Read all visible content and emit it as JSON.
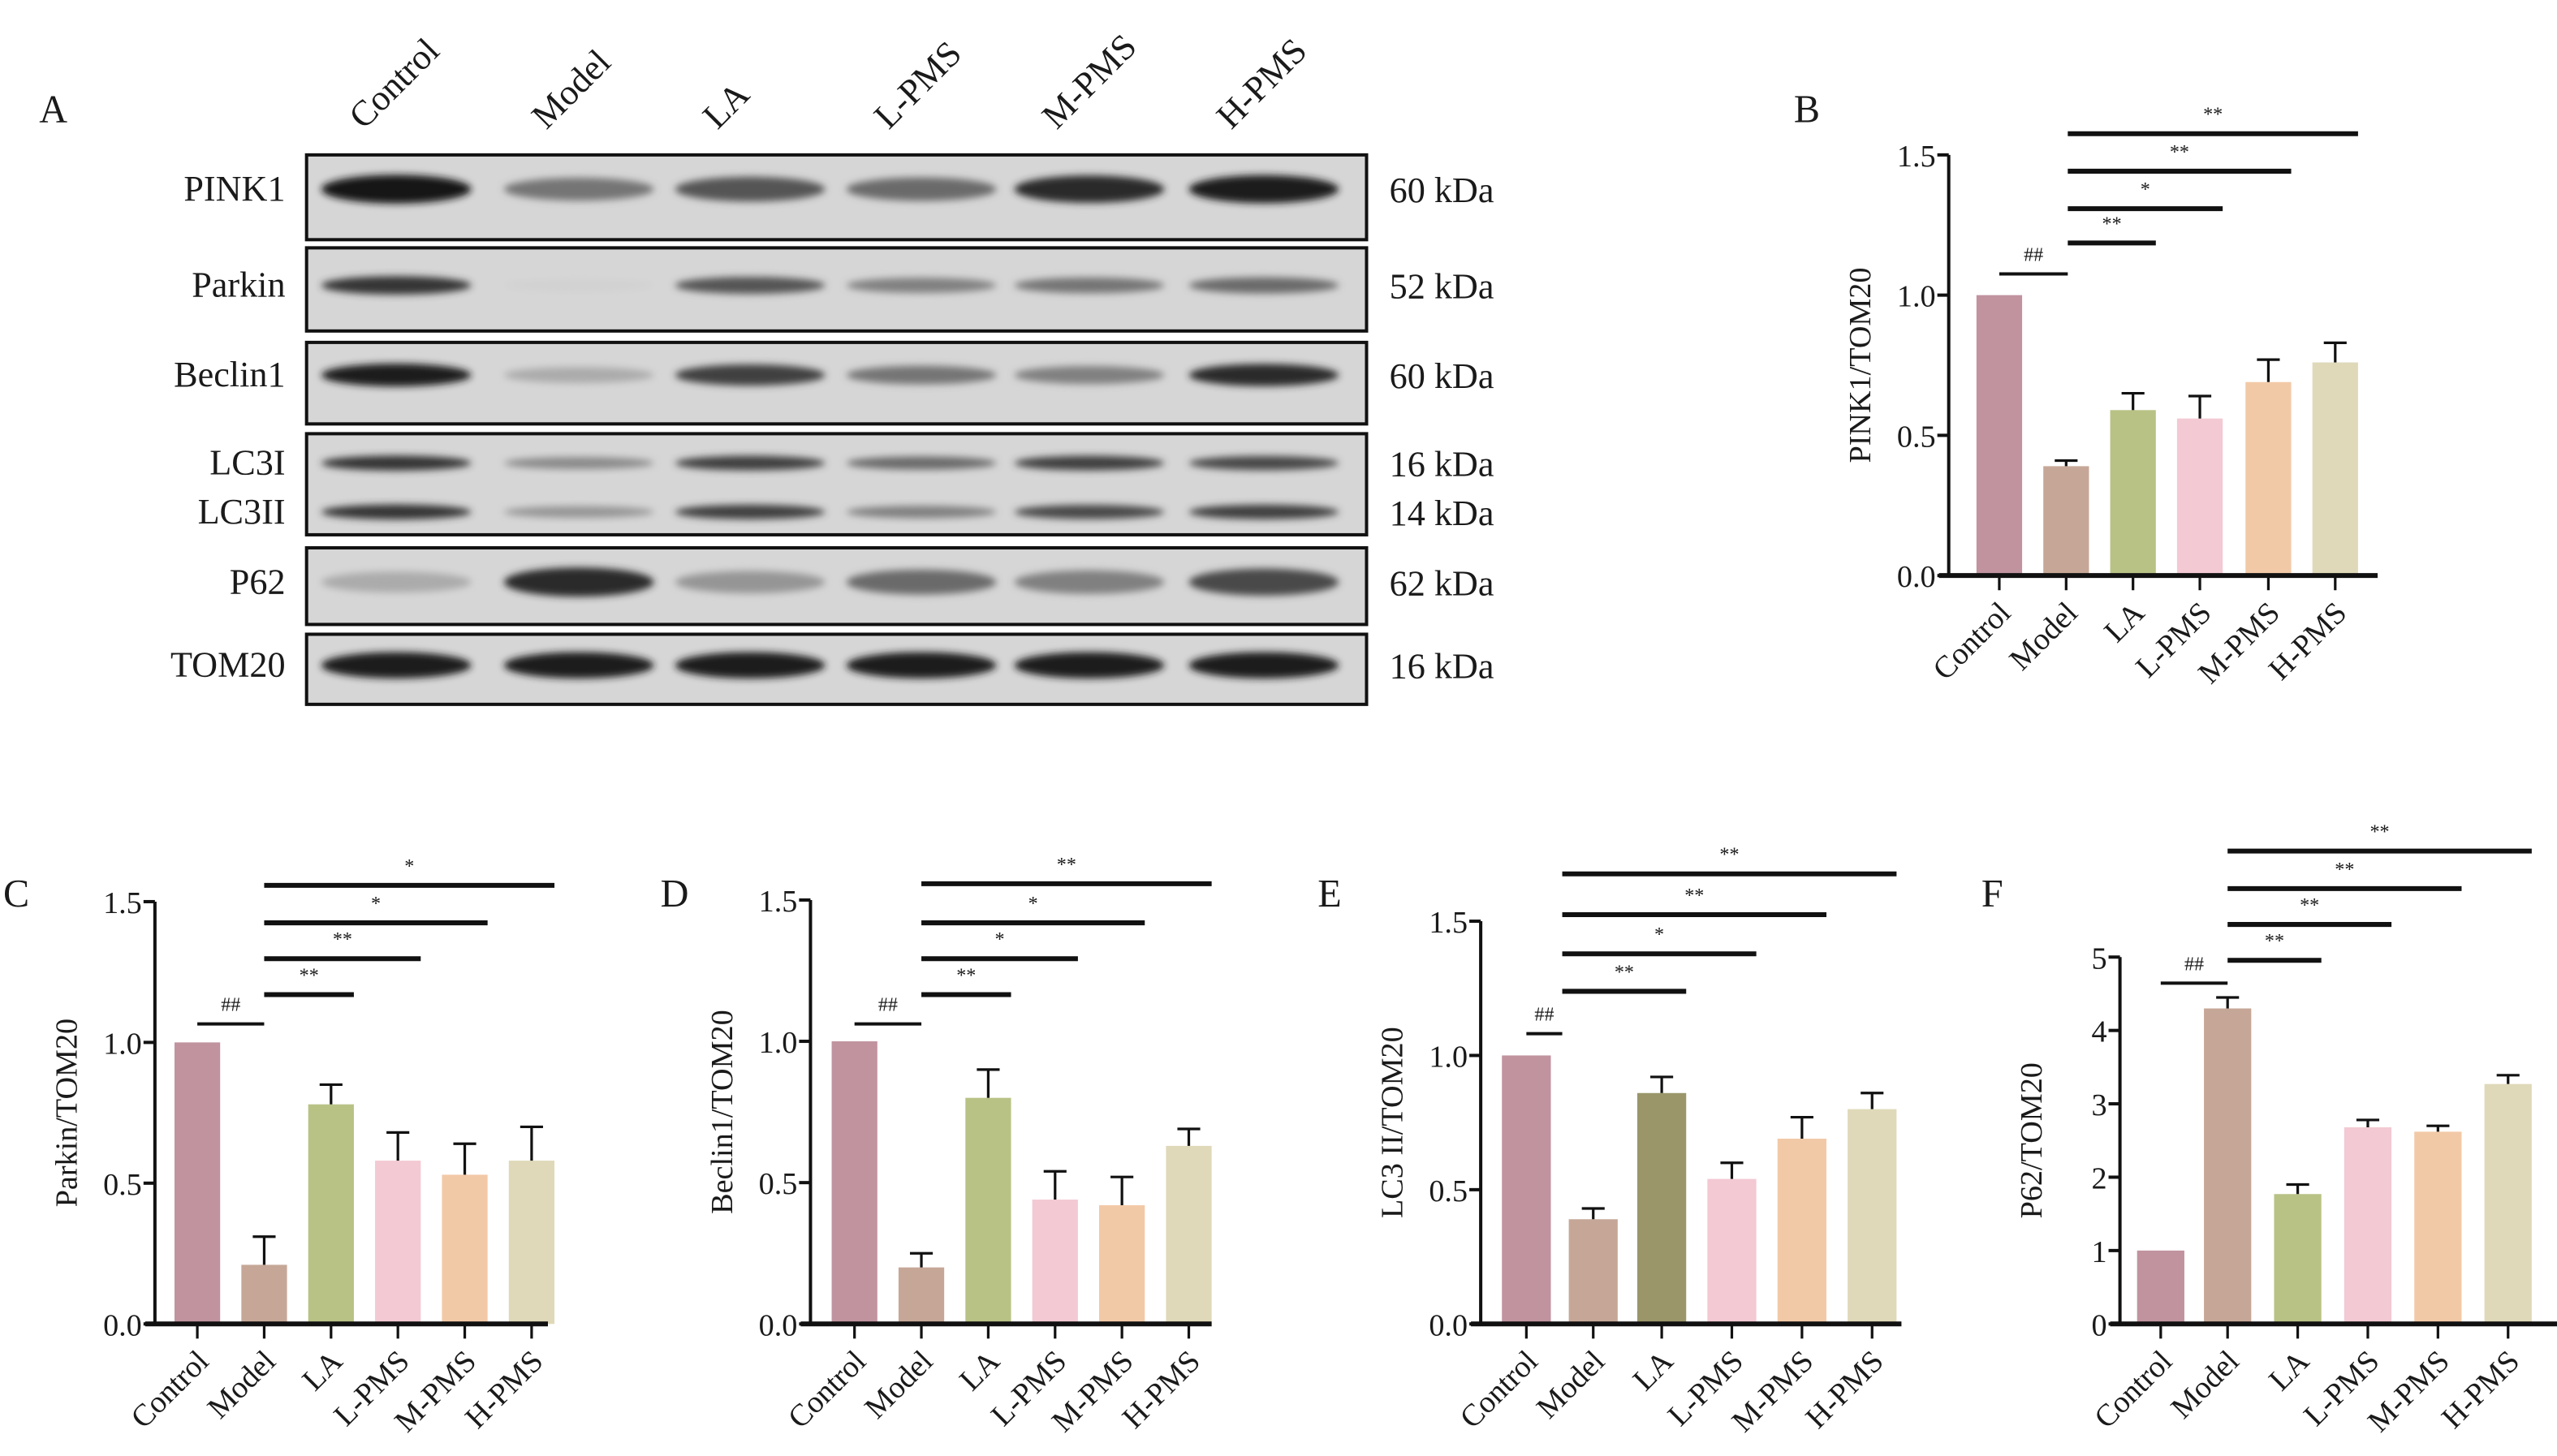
{
  "groups": [
    "Control",
    "Model",
    "LA",
    "L-PMS",
    "M-PMS",
    "H-PMS"
  ],
  "bar_colors": [
    "#c0939f",
    "#c6a797",
    "#b9c285",
    "#f3c9d3",
    "#f2c9a7",
    "#dfd9b9"
  ],
  "panel_a": {
    "label": "A",
    "blots": [
      {
        "protein": "PINK1",
        "size": "60 kDa",
        "intensity": [
          1.0,
          0.55,
          0.7,
          0.6,
          0.9,
          0.95
        ]
      },
      {
        "protein": "Parkin",
        "size": "52 kDa",
        "intensity": [
          0.85,
          0.12,
          0.7,
          0.5,
          0.55,
          0.6
        ]
      },
      {
        "protein": "Beclin1",
        "size": "60 kDa",
        "intensity": [
          0.95,
          0.3,
          0.8,
          0.55,
          0.5,
          0.9
        ]
      },
      {
        "protein": "LC3I",
        "size": "16 kDa",
        "intensity": [
          0.85,
          0.45,
          0.8,
          0.6,
          0.8,
          0.75
        ]
      },
      {
        "protein": "LC3II",
        "size": "14 kDa",
        "intensity": [
          0.85,
          0.4,
          0.8,
          0.5,
          0.75,
          0.8
        ]
      },
      {
        "protein": "P62",
        "size": "62 kDa",
        "intensity": [
          0.3,
          0.9,
          0.4,
          0.6,
          0.5,
          0.75
        ]
      },
      {
        "protein": "TOM20",
        "size": "16 kDa",
        "intensity": [
          0.95,
          0.95,
          0.95,
          0.95,
          0.95,
          0.95
        ]
      }
    ]
  },
  "chart_data": [
    {
      "panel": "B",
      "type": "bar",
      "ylabel": "PINK1/TOM20",
      "ylim": [
        0,
        1.5
      ],
      "yticks": [
        "0.0",
        "0.5",
        "1.0",
        "1.5"
      ],
      "yticks_values": [
        0,
        0.5,
        1,
        1.5
      ],
      "categories": [
        "Control",
        "Model",
        "LA",
        "L-PMS",
        "M-PMS",
        "H-PMS"
      ],
      "values": [
        1.0,
        0.39,
        0.59,
        0.56,
        0.69,
        0.76
      ],
      "errors": [
        0,
        0.02,
        0.06,
        0.08,
        0.08,
        0.07
      ],
      "significance": [
        [
          "Control",
          "Model",
          "##"
        ],
        [
          "Model",
          "LA",
          "**"
        ],
        [
          "Model",
          "L-PMS",
          "*"
        ],
        [
          "Model",
          "M-PMS",
          "**"
        ],
        [
          "Model",
          "H-PMS",
          "**"
        ]
      ]
    },
    {
      "panel": "C",
      "type": "bar",
      "ylabel": "Parkin/TOM20",
      "ylim": [
        0,
        1.5
      ],
      "yticks": [
        "0.0",
        "0.5",
        "1.0",
        "1.5"
      ],
      "yticks_values": [
        0,
        0.5,
        1,
        1.5
      ],
      "categories": [
        "Control",
        "Model",
        "LA",
        "L-PMS",
        "M-PMS",
        "H-PMS"
      ],
      "values": [
        1.0,
        0.21,
        0.78,
        0.58,
        0.53,
        0.58
      ],
      "errors": [
        0,
        0.1,
        0.07,
        0.1,
        0.11,
        0.12
      ],
      "significance": [
        [
          "Control",
          "Model",
          "##"
        ],
        [
          "Model",
          "LA",
          "**"
        ],
        [
          "Model",
          "L-PMS",
          "**"
        ],
        [
          "Model",
          "M-PMS",
          "*"
        ],
        [
          "Model",
          "H-PMS",
          "*"
        ]
      ]
    },
    {
      "panel": "D",
      "type": "bar",
      "ylabel": "Beclin1/TOM20",
      "ylim": [
        0,
        1.5
      ],
      "yticks": [
        "0.0",
        "0.5",
        "1.0",
        "1.5"
      ],
      "yticks_values": [
        0,
        0.5,
        1,
        1.5
      ],
      "categories": [
        "Control",
        "Model",
        "LA",
        "L-PMS",
        "M-PMS",
        "H-PMS"
      ],
      "values": [
        1.0,
        0.2,
        0.8,
        0.44,
        0.42,
        0.63
      ],
      "errors": [
        0,
        0.05,
        0.1,
        0.1,
        0.1,
        0.06
      ],
      "significance": [
        [
          "Control",
          "Model",
          "##"
        ],
        [
          "Model",
          "LA",
          "**"
        ],
        [
          "Model",
          "L-PMS",
          "*"
        ],
        [
          "Model",
          "M-PMS",
          "*"
        ],
        [
          "Model",
          "H-PMS",
          "**"
        ]
      ]
    },
    {
      "panel": "E",
      "type": "bar",
      "ylabel": "LC3 II/TOM20",
      "ylim": [
        0,
        1.5
      ],
      "yticks": [
        "0.0",
        "0.5",
        "1.0",
        "1.5"
      ],
      "yticks_values": [
        0,
        0.5,
        1,
        1.5
      ],
      "categories": [
        "Control",
        "Model",
        "LA",
        "L-PMS",
        "M-PMS",
        "H-PMS"
      ],
      "values": [
        1.0,
        0.39,
        0.86,
        0.54,
        0.69,
        0.8
      ],
      "errors": [
        0,
        0.04,
        0.06,
        0.06,
        0.08,
        0.06
      ],
      "colors_override": {
        "LA": "#9b966a"
      },
      "significance": [
        [
          "Control",
          "Model",
          "##"
        ],
        [
          "Model",
          "LA",
          "**"
        ],
        [
          "Model",
          "L-PMS",
          "*"
        ],
        [
          "Model",
          "M-PMS",
          "**"
        ],
        [
          "Model",
          "H-PMS",
          "**"
        ]
      ]
    },
    {
      "panel": "F",
      "type": "bar",
      "ylabel": "P62/TOM20",
      "ylim": [
        0,
        5
      ],
      "yticks": [
        "0",
        "1",
        "2",
        "3",
        "4",
        "5"
      ],
      "yticks_values": [
        0,
        1,
        2,
        3,
        4,
        5
      ],
      "categories": [
        "Control",
        "Model",
        "LA",
        "L-PMS",
        "M-PMS",
        "H-PMS"
      ],
      "values": [
        1.0,
        4.3,
        1.77,
        2.68,
        2.62,
        3.27
      ],
      "errors": [
        0,
        0.15,
        0.13,
        0.1,
        0.08,
        0.12
      ],
      "significance": [
        [
          "Control",
          "Model",
          "##"
        ],
        [
          "Model",
          "LA",
          "**"
        ],
        [
          "Model",
          "L-PMS",
          "**"
        ],
        [
          "Model",
          "M-PMS",
          "**"
        ],
        [
          "Model",
          "H-PMS",
          "**"
        ]
      ]
    }
  ]
}
